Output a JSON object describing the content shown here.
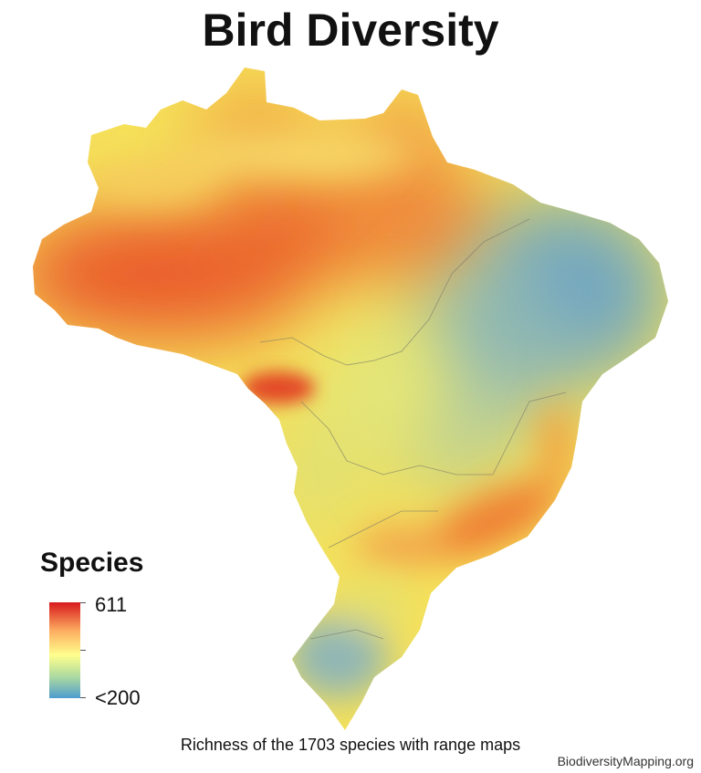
{
  "title": "Bird Diversity",
  "legend": {
    "title": "Species",
    "max_label": "611",
    "min_label": "<200",
    "colors": [
      "#d7191c",
      "#fdae61",
      "#ffff8c",
      "#abd9a0",
      "#4f9ccf"
    ]
  },
  "caption": "Richness of the 1703 species with range maps",
  "credit": "BiodiversityMapping.org",
  "map": {
    "region": "Brazil",
    "coloring": "bird species richness",
    "high_richness_color": "#e8452a",
    "low_richness_color": "#6ea5c2"
  }
}
